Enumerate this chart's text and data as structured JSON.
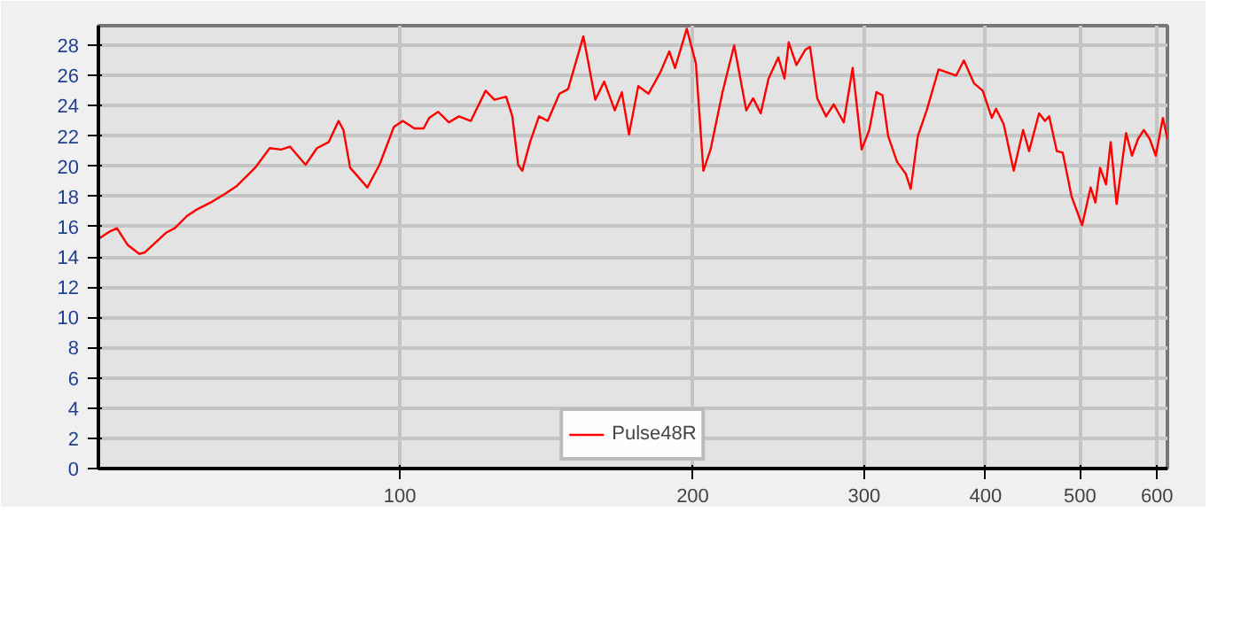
{
  "chart_data": {
    "type": "line",
    "log": "x",
    "xlim": [
      49,
      615
    ],
    "ylim": [
      0,
      29.3
    ],
    "xticks": [
      100,
      200,
      300,
      400,
      500,
      600
    ],
    "yticks": [
      0,
      2,
      4,
      6,
      8,
      10,
      12,
      14,
      16,
      18,
      20,
      22,
      24,
      26,
      28
    ],
    "grid": true,
    "legend": "bottom",
    "line_style": "solid",
    "marker": "none",
    "series": [
      {
        "name": "Pulse48R",
        "color": "#ff0000",
        "x": [
          49.0,
          50.4,
          51.2,
          52.5,
          54.0,
          54.7,
          57.5,
          58.7,
          60.4,
          61.7,
          63.9,
          66.2,
          68.0,
          71.0,
          73.5,
          75.5,
          77.1,
          80.0,
          82.2,
          84.5,
          86.5,
          87.5,
          88.9,
          90.6,
          92.6,
          95.3,
          98.6,
          100.7,
          103.5,
          105.8,
          107.2,
          109.5,
          112.3,
          115.0,
          118.3,
          122.5,
          125.1,
          128.6,
          130.5,
          132.3,
          133.6,
          136.1,
          139.0,
          141.9,
          145.9,
          148.9,
          154.4,
          158.8,
          162.2,
          166.3,
          169.1,
          172.0,
          175.8,
          180.1,
          185.2,
          189.2,
          191.8,
          197.2,
          201.5,
          205.1,
          208.6,
          214.6,
          220.6,
          227.0,
          230.7,
          234.9,
          239.3,
          244.9,
          248.5,
          251.0,
          255.6,
          261.0,
          264.0,
          268.5,
          274.2,
          279.2,
          285.9,
          292.0,
          298.3,
          303.7,
          308.9,
          313.3,
          317.6,
          324.3,
          331.1,
          335.0,
          340.7,
          347.9,
          357.8,
          365.4,
          373.1,
          379.9,
          389.0,
          397.2,
          405.9,
          409.9,
          417.4,
          427.5,
          437.1,
          443.3,
          453.9,
          460.3,
          464.9,
          473.4,
          480.0,
          490.2,
          502.6,
          512.8,
          518.6,
          524.4,
          531.8,
          537.7,
          545.3,
          557.7,
          565.5,
          573.6,
          581.6,
          589.8,
          598.3,
          608.4,
          615.0
        ],
        "values": [
          15.2,
          15.7,
          15.9,
          14.8,
          14.2,
          14.3,
          15.6,
          15.9,
          16.7,
          17.1,
          17.6,
          18.2,
          18.7,
          19.9,
          21.2,
          21.1,
          21.3,
          20.1,
          21.2,
          21.6,
          23.0,
          22.4,
          19.9,
          19.3,
          18.6,
          20.1,
          22.6,
          23.0,
          22.5,
          22.5,
          23.2,
          23.6,
          22.9,
          23.3,
          23.0,
          25.0,
          24.4,
          24.6,
          23.3,
          20.1,
          19.7,
          21.6,
          23.3,
          23.0,
          24.8,
          25.1,
          28.6,
          24.4,
          25.6,
          23.7,
          24.9,
          22.1,
          25.3,
          24.8,
          26.2,
          27.6,
          26.5,
          29.1,
          26.8,
          19.7,
          21.1,
          24.9,
          28.0,
          23.7,
          24.5,
          23.5,
          25.8,
          27.2,
          25.8,
          28.2,
          26.7,
          27.7,
          27.9,
          24.5,
          23.3,
          24.1,
          22.9,
          26.5,
          21.1,
          22.4,
          24.9,
          24.7,
          22.0,
          20.3,
          19.5,
          18.5,
          22.0,
          23.7,
          26.4,
          26.2,
          26.0,
          27.0,
          25.5,
          25.0,
          23.2,
          23.8,
          22.8,
          19.7,
          22.4,
          21.0,
          23.5,
          23.0,
          23.3,
          21.0,
          20.9,
          18.0,
          16.1,
          18.6,
          17.6,
          19.9,
          18.8,
          21.6,
          17.5,
          22.2,
          20.7,
          21.8,
          22.4,
          21.8,
          20.7,
          23.2,
          21.8
        ]
      }
    ]
  }
}
